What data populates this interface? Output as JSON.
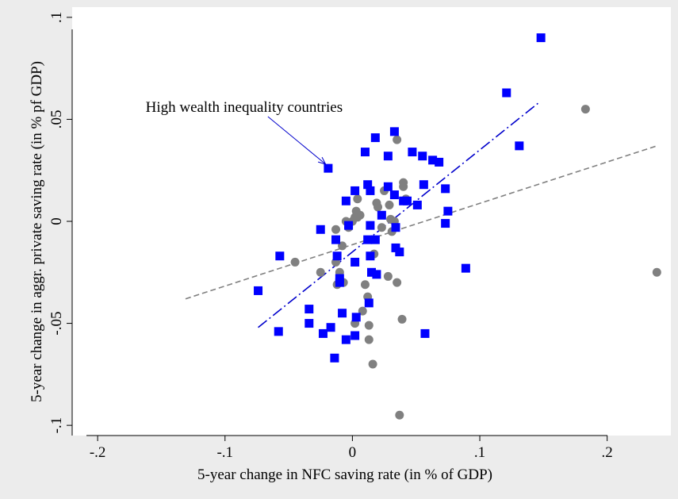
{
  "chart_data": {
    "type": "scatter",
    "xlabel": "5-year change in NFC saving rate (in % of GDP)",
    "ylabel": "5-year change in aggr. private saving rate (in % pf GDP)",
    "xlim": [
      -0.22,
      0.25
    ],
    "ylim": [
      -0.105,
      0.105
    ],
    "x_ticks": [
      {
        "value": -0.2,
        "label": "-.2"
      },
      {
        "value": -0.1,
        "label": "-.1"
      },
      {
        "value": 0,
        "label": "0"
      },
      {
        "value": 0.1,
        "label": ".1"
      },
      {
        "value": 0.2,
        "label": ".2"
      }
    ],
    "y_ticks": [
      {
        "value": -0.1,
        "label": "-.1"
      },
      {
        "value": -0.05,
        "label": "-.05"
      },
      {
        "value": 0,
        "label": "0"
      },
      {
        "value": 0.05,
        "label": ".05"
      },
      {
        "value": 0.1,
        "label": ".1"
      }
    ],
    "grid": false,
    "annotation": {
      "text": "High wealth inequality countries",
      "x": -0.085,
      "y": 0.056,
      "arrow_to": {
        "x": -0.021,
        "y": 0.028
      },
      "color": "#0000cc"
    },
    "series": [
      {
        "marker": "circle",
        "color": "#808080",
        "points": [
          [
            -0.045,
            -0.02
          ],
          [
            -0.025,
            -0.025
          ],
          [
            -0.013,
            -0.02
          ],
          [
            -0.013,
            -0.004
          ],
          [
            -0.008,
            -0.012
          ],
          [
            -0.01,
            -0.025
          ],
          [
            -0.012,
            -0.031
          ],
          [
            -0.007,
            -0.03
          ],
          [
            -0.005,
            0.0
          ],
          [
            -0.003,
            -0.003
          ],
          [
            0.0,
            0.0
          ],
          [
            0.002,
            0.002
          ],
          [
            0.004,
            0.011
          ],
          [
            0.004,
            0.002
          ],
          [
            0.003,
            0.005
          ],
          [
            0.006,
            0.003
          ],
          [
            0.002,
            -0.05
          ],
          [
            0.008,
            -0.044
          ],
          [
            0.01,
            -0.031
          ],
          [
            0.012,
            -0.037
          ],
          [
            0.013,
            -0.051
          ],
          [
            0.013,
            -0.058
          ],
          [
            0.016,
            -0.07
          ],
          [
            0.017,
            -0.016
          ],
          [
            0.019,
            0.009
          ],
          [
            0.02,
            0.007
          ],
          [
            0.023,
            -0.003
          ],
          [
            0.025,
            0.015
          ],
          [
            0.029,
            0.008
          ],
          [
            0.03,
            0.001
          ],
          [
            0.031,
            -0.005
          ],
          [
            0.028,
            -0.027
          ],
          [
            0.033,
            0.0
          ],
          [
            0.035,
            0.04
          ],
          [
            0.035,
            -0.03
          ],
          [
            0.04,
            0.017
          ],
          [
            0.04,
            0.019
          ],
          [
            0.039,
            -0.048
          ],
          [
            0.037,
            -0.095
          ],
          [
            0.042,
            0.011
          ],
          [
            0.183,
            0.055
          ],
          [
            0.239,
            -0.025
          ]
        ]
      },
      {
        "marker": "square",
        "color": "#0000ff",
        "points": [
          [
            -0.074,
            -0.034
          ],
          [
            -0.058,
            -0.054
          ],
          [
            -0.057,
            -0.017
          ],
          [
            -0.034,
            -0.043
          ],
          [
            -0.034,
            -0.05
          ],
          [
            -0.025,
            -0.004
          ],
          [
            -0.023,
            -0.055
          ],
          [
            -0.019,
            0.026
          ],
          [
            -0.017,
            -0.052
          ],
          [
            -0.014,
            -0.067
          ],
          [
            -0.013,
            -0.009
          ],
          [
            -0.012,
            -0.017
          ],
          [
            -0.01,
            -0.03
          ],
          [
            -0.01,
            -0.028
          ],
          [
            -0.008,
            -0.045
          ],
          [
            -0.005,
            0.01
          ],
          [
            -0.005,
            -0.058
          ],
          [
            -0.003,
            -0.002
          ],
          [
            0.002,
            0.015
          ],
          [
            0.002,
            -0.02
          ],
          [
            0.002,
            -0.056
          ],
          [
            0.003,
            -0.047
          ],
          [
            0.01,
            0.034
          ],
          [
            0.012,
            0.018
          ],
          [
            0.012,
            -0.009
          ],
          [
            0.013,
            -0.04
          ],
          [
            0.014,
            -0.002
          ],
          [
            0.014,
            0.015
          ],
          [
            0.014,
            -0.017
          ],
          [
            0.015,
            -0.025
          ],
          [
            0.018,
            0.041
          ],
          [
            0.018,
            -0.009
          ],
          [
            0.019,
            -0.026
          ],
          [
            0.023,
            0.003
          ],
          [
            0.028,
            0.017
          ],
          [
            0.028,
            0.032
          ],
          [
            0.033,
            0.044
          ],
          [
            0.033,
            0.013
          ],
          [
            0.034,
            -0.003
          ],
          [
            0.034,
            -0.013
          ],
          [
            0.037,
            -0.015
          ],
          [
            0.04,
            0.01
          ],
          [
            0.043,
            0.01
          ],
          [
            0.047,
            0.034
          ],
          [
            0.051,
            0.008
          ],
          [
            0.055,
            0.032
          ],
          [
            0.056,
            0.018
          ],
          [
            0.057,
            -0.055
          ],
          [
            0.063,
            0.03
          ],
          [
            0.068,
            0.029
          ],
          [
            0.073,
            0.016
          ],
          [
            0.073,
            -0.001
          ],
          [
            0.075,
            0.005
          ],
          [
            0.089,
            -0.023
          ],
          [
            0.121,
            0.063
          ],
          [
            0.131,
            0.037
          ],
          [
            0.148,
            0.09
          ]
        ]
      }
    ],
    "fit_lines": [
      {
        "name": "",
        "style": "dashed",
        "color": "#808080",
        "from": [
          -0.131,
          -0.038
        ],
        "to": [
          0.239,
          0.037
        ]
      },
      {
        "name": "",
        "style": "dash-dot",
        "color": "#0000cc",
        "from": [
          -0.074,
          -0.052
        ],
        "to": [
          0.146,
          0.058
        ]
      }
    ]
  }
}
